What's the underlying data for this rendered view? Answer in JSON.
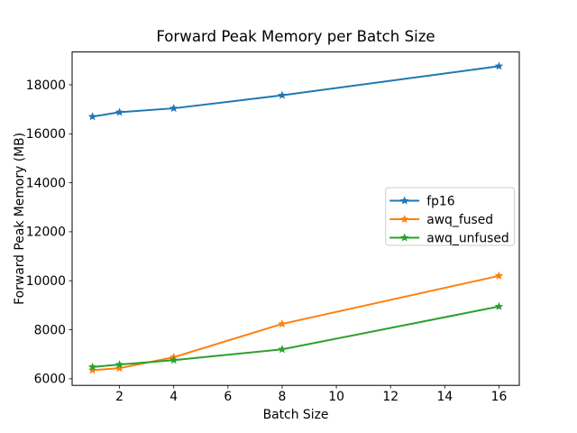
{
  "chart_data": {
    "type": "line",
    "title": "Forward Peak Memory per Batch Size",
    "xlabel": "Batch Size",
    "ylabel": "Forward Peak Memory (MB)",
    "x": [
      1,
      2,
      4,
      8,
      16
    ],
    "series": [
      {
        "name": "fp16",
        "color": "#1f77b4",
        "values": [
          16700,
          16880,
          17040,
          17570,
          18760
        ]
      },
      {
        "name": "awq_fused",
        "color": "#ff7f0e",
        "values": [
          6350,
          6430,
          6880,
          8240,
          10200
        ]
      },
      {
        "name": "awq_unfused",
        "color": "#2ca02c",
        "values": [
          6480,
          6580,
          6760,
          7200,
          8950
        ]
      }
    ],
    "marker": "star",
    "xlim": [
      0.25,
      16.75
    ],
    "ylim": [
      5730,
      19340
    ],
    "xticks": [
      2,
      4,
      6,
      8,
      10,
      12,
      14,
      16
    ],
    "yticks": [
      6000,
      8000,
      10000,
      12000,
      14000,
      16000,
      18000
    ],
    "grid": false,
    "legend_position": "center right",
    "background_color": "#ffffff",
    "spine_color": "#000000",
    "legend_border_color": "#cccccc"
  }
}
